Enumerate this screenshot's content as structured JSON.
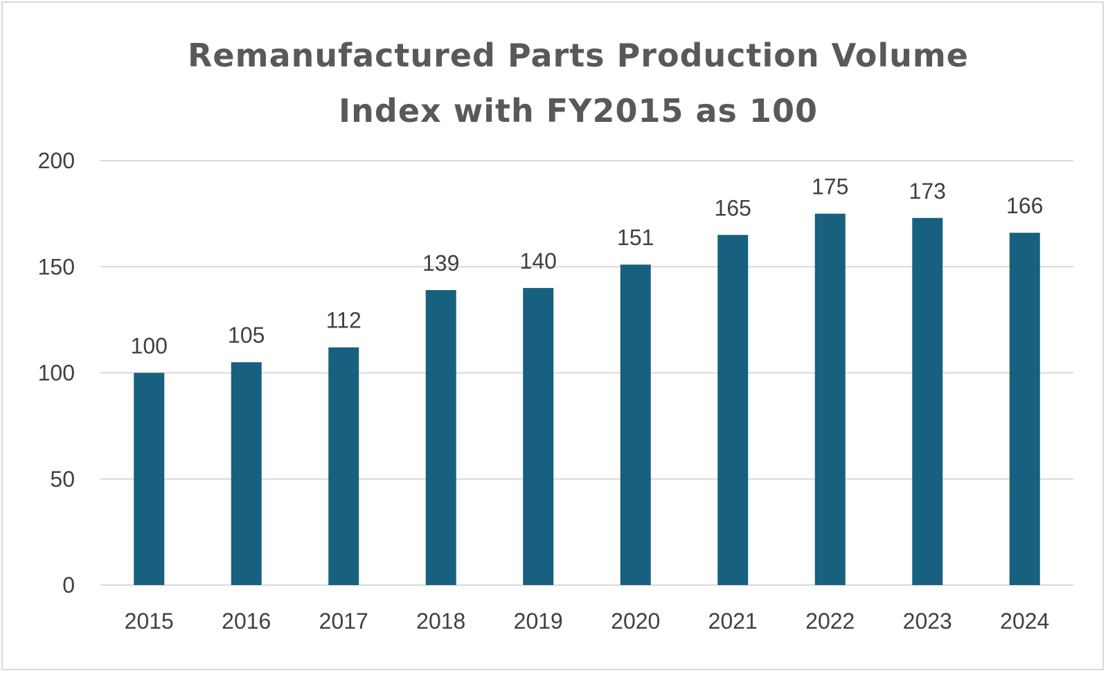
{
  "chart_data": {
    "type": "bar",
    "title_lines": [
      "Remanufactured Parts Production Volume",
      "Index with FY2015 as 100"
    ],
    "xlabel": "",
    "ylabel": "",
    "categories": [
      "2015",
      "2016",
      "2017",
      "2018",
      "2019",
      "2020",
      "2021",
      "2022",
      "2023",
      "2024"
    ],
    "values": [
      100,
      105,
      112,
      139,
      140,
      151,
      165,
      175,
      173,
      166
    ],
    "ylim": [
      0,
      200
    ],
    "yticks": [
      0,
      50,
      100,
      150,
      200
    ],
    "grid": true,
    "legend": "none",
    "data_labels": true,
    "colors": {
      "bar": "#17607f",
      "grid": "#d9d9d9",
      "text": "#595959"
    }
  }
}
